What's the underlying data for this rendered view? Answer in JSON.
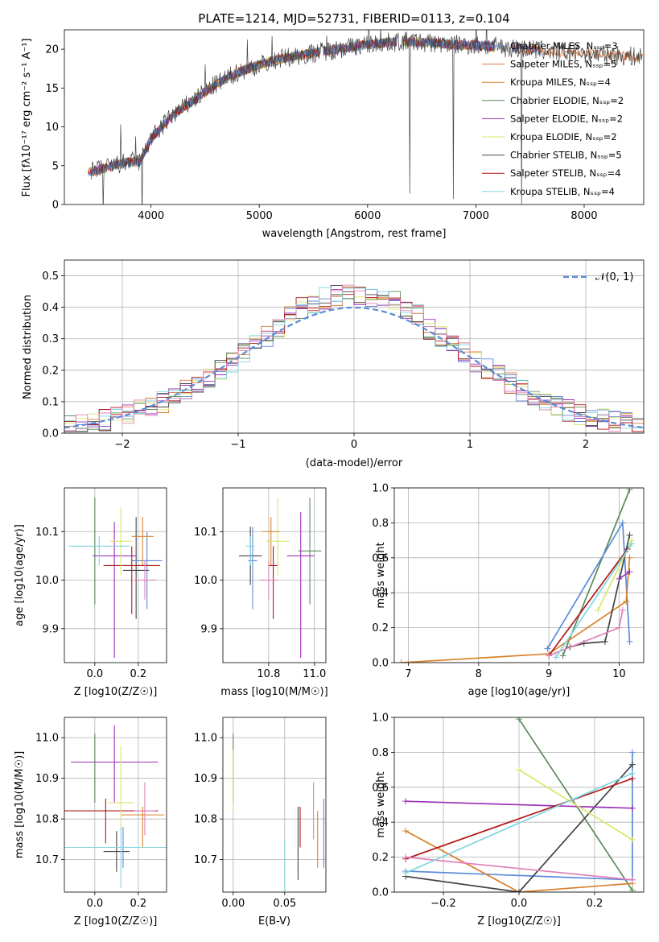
{
  "title": "PLATE=1214, MJD=52731, FIBERID=0113, z=0.104",
  "colors": {
    "Chabrier MILES": "#5b8bd9",
    "Salpeter MILES": "#e07a45",
    "Kroupa MILES": "#d9822b",
    "Chabrier ELODIE": "#5a8a5a",
    "Salpeter ELODIE": "#9b30b8",
    "Kroupa ELODIE": "#d8e86a",
    "Chabrier STELIB": "#444444",
    "Salpeter STELIB": "#b01818",
    "Kroupa STELIB": "#7fd6df",
    "Extra pink": "#e07fb8"
  },
  "chart_data": [
    {
      "type": "line",
      "title": "PLATE=1214, MJD=52731, FIBERID=0113, z=0.104",
      "xlabel": "wavelength [Angstrom, rest frame]",
      "ylabel": "Flux [fλ10⁻¹⁷ erg cm⁻² s⁻¹ A⁻¹]",
      "xlim": [
        3200,
        8550
      ],
      "ylim": [
        0,
        22.5
      ],
      "xticks": [
        4000,
        5000,
        6000,
        7000,
        8000
      ],
      "yticks": [
        0,
        5,
        10,
        15,
        20
      ],
      "legend": "top-right",
      "series": [
        {
          "name": "Chabrier MILES, N_SSP=3",
          "color": "#5b8bd9"
        },
        {
          "name": "Salpeter MILES, N_SSP=5",
          "color": "#e07a45"
        },
        {
          "name": "Kroupa MILES, N_SSP=4",
          "color": "#d9822b"
        },
        {
          "name": "Chabrier ELODIE, N_SSP=2",
          "color": "#5a8a5a"
        },
        {
          "name": "Salpeter ELODIE, N_SSP=2",
          "color": "#9b30b8"
        },
        {
          "name": "Kroupa ELODIE, N_SSP=2",
          "color": "#d8e86a"
        },
        {
          "name": "Chabrier STELIB, N_SSP=5",
          "color": "#444444"
        },
        {
          "name": "Salpeter STELIB, N_SSP=4",
          "color": "#b01818"
        },
        {
          "name": "Kroupa STELIB, N_SSP=4",
          "color": "#7fd6df"
        }
      ],
      "continuum": {
        "x": [
          3450,
          3600,
          3800,
          3900,
          4000,
          4100,
          4200,
          4400,
          4600,
          4800,
          5000,
          5200,
          5500,
          5800,
          6000,
          6300,
          6600,
          6800,
          7000,
          7200,
          7500,
          7800,
          8000,
          8200,
          8500
        ],
        "y": [
          4.2,
          4.8,
          5.5,
          5.5,
          8.5,
          10.0,
          11.5,
          13.5,
          15.5,
          17.0,
          18.0,
          18.8,
          19.5,
          20.2,
          20.6,
          21.0,
          20.8,
          20.6,
          20.5,
          20.3,
          20.0,
          19.6,
          19.5,
          19.3,
          19.0
        ]
      }
    },
    {
      "type": "line",
      "xlabel": "(data-model)/error",
      "ylabel": "Normed distribution",
      "xlim": [
        -2.5,
        2.5
      ],
      "ylim": [
        0,
        0.55
      ],
      "xticks": [
        -2,
        -1,
        0,
        1,
        2
      ],
      "yticks": [
        0.0,
        0.1,
        0.2,
        0.3,
        0.4,
        0.5
      ],
      "legend_label": "𝒩(0, 1)",
      "bins_x": [
        -2.5,
        -2.4,
        -2.3,
        -2.2,
        -2.1,
        -2.0,
        -1.9,
        -1.8,
        -1.7,
        -1.6,
        -1.5,
        -1.4,
        -1.3,
        -1.2,
        -1.1,
        -1.0,
        -0.9,
        -0.8,
        -0.7,
        -0.6,
        -0.5,
        -0.4,
        -0.3,
        -0.2,
        -0.1,
        0.0,
        0.1,
        0.2,
        0.3,
        0.4,
        0.5,
        0.6,
        0.7,
        0.8,
        0.9,
        1.0,
        1.1,
        1.2,
        1.3,
        1.4,
        1.5,
        1.6,
        1.7,
        1.8,
        1.9,
        2.0,
        2.1,
        2.2,
        2.3,
        2.4
      ]
    },
    {
      "type": "scatter",
      "xlabel": "Z [log10(Z/Z☉)]",
      "ylabel": "age  [log10(age/yr)]",
      "xlim": [
        -0.14,
        0.33
      ],
      "ylim": [
        9.83,
        10.19
      ],
      "xticks": [
        0.0,
        0.2
      ],
      "yticks": [
        9.9,
        10.0,
        10.1
      ],
      "points": [
        {
          "x": 0.0,
          "y": 10.06,
          "xerr": 0.0,
          "yerr": [
            0.11,
            0.11
          ],
          "color": "#5a8a5a"
        },
        {
          "x": 0.09,
          "y": 10.05,
          "xerr": 0.1,
          "yerr": [
            0.21,
            0.07
          ],
          "color": "#9b30b8"
        },
        {
          "x": 0.19,
          "y": 10.02,
          "xerr": 0.06,
          "yerr": [
            0.1,
            0.11
          ],
          "color": "#444444"
        },
        {
          "x": 0.24,
          "y": 10.04,
          "xerr": 0.07,
          "yerr": [
            0.1,
            0.06
          ],
          "color": "#5b8bd9"
        },
        {
          "x": 0.22,
          "y": 10.09,
          "xerr": 0.05,
          "yerr": [
            0.06,
            0.04
          ],
          "color": "#d9822b"
        },
        {
          "x": 0.17,
          "y": 10.03,
          "xerr": 0.13,
          "yerr": [
            0.1,
            0.04
          ],
          "color": "#b01818"
        },
        {
          "x": 0.23,
          "y": 10.0,
          "xerr": 0.05,
          "yerr": [
            0.04,
            0.04
          ],
          "color": "#e07fb8"
        },
        {
          "x": 0.12,
          "y": 10.08,
          "xerr": 0.05,
          "yerr": [
            0.07,
            0.07
          ],
          "color": "#d8e86a"
        },
        {
          "x": 0.02,
          "y": 10.07,
          "xerr": 0.14,
          "yerr": [
            0.04,
            0.02
          ],
          "color": "#7fd6df"
        }
      ]
    },
    {
      "type": "scatter",
      "xlabel": "mass [log10(M/M☉)]",
      "ylabel": "",
      "xlim": [
        10.6,
        11.05
      ],
      "ylim": [
        9.83,
        10.19
      ],
      "xticks": [
        10.8,
        11.0
      ],
      "yticks": [
        9.9,
        10.0,
        10.1
      ],
      "points": [
        {
          "x": 10.98,
          "y": 10.06,
          "xerr": 0.05,
          "yerr": [
            0.11,
            0.11
          ],
          "color": "#5a8a5a"
        },
        {
          "x": 10.94,
          "y": 10.05,
          "xerr": 0.06,
          "yerr": [
            0.21,
            0.09
          ],
          "color": "#9b30b8"
        },
        {
          "x": 10.72,
          "y": 10.05,
          "xerr": 0.05,
          "yerr": [
            0.06,
            0.06
          ],
          "color": "#444444"
        },
        {
          "x": 10.73,
          "y": 10.04,
          "xerr": 0.02,
          "yerr": [
            0.1,
            0.07
          ],
          "color": "#5b8bd9"
        },
        {
          "x": 10.81,
          "y": 10.1,
          "xerr": 0.04,
          "yerr": [
            0.07,
            0.03
          ],
          "color": "#d9822b"
        },
        {
          "x": 10.82,
          "y": 10.03,
          "xerr": 0.02,
          "yerr": [
            0.11,
            0.04
          ],
          "color": "#b01818"
        },
        {
          "x": 10.8,
          "y": 10.0,
          "xerr": 0.04,
          "yerr": [
            0.04,
            0.04
          ],
          "color": "#e07fb8"
        },
        {
          "x": 10.84,
          "y": 10.08,
          "xerr": 0.05,
          "yerr": [
            0.07,
            0.09
          ],
          "color": "#d8e86a"
        },
        {
          "x": 10.72,
          "y": 10.07,
          "xerr": 0.02,
          "yerr": [
            0.04,
            0.02
          ],
          "color": "#7fd6df"
        }
      ]
    },
    {
      "type": "line",
      "xlabel": "age  [log10(age/yr)]",
      "ylabel": "mass weight",
      "xlim": [
        6.8,
        10.35
      ],
      "ylim": [
        0,
        1.0
      ],
      "xticks": [
        7,
        8,
        9,
        10
      ],
      "yticks": [
        0.0,
        0.2,
        0.4,
        0.6,
        0.8,
        1.0
      ],
      "series": [
        {
          "color": "#5a8a5a",
          "x": [
            9.2,
            10.15
          ],
          "y": [
            0.04,
            0.99
          ]
        },
        {
          "color": "#5b8bd9",
          "x": [
            8.98,
            10.05,
            10.15
          ],
          "y": [
            0.08,
            0.8,
            0.12
          ]
        },
        {
          "color": "#d9822b",
          "x": [
            6.9,
            9.0,
            10.1,
            10.15
          ],
          "y": [
            0.0,
            0.05,
            0.35,
            0.6
          ]
        },
        {
          "color": "#444444",
          "x": [
            9.3,
            9.5,
            9.8,
            10.15
          ],
          "y": [
            0.09,
            0.11,
            0.12,
            0.73
          ]
        },
        {
          "color": "#9b30b8",
          "x": [
            10.0,
            10.15
          ],
          "y": [
            0.48,
            0.52
          ]
        },
        {
          "color": "#d8e86a",
          "x": [
            9.7,
            10.18
          ],
          "y": [
            0.3,
            0.7
          ]
        },
        {
          "color": "#b01818",
          "x": [
            9.0,
            10.12
          ],
          "y": [
            0.04,
            0.65
          ]
        },
        {
          "color": "#e07fb8",
          "x": [
            9.0,
            10.0,
            10.05
          ],
          "y": [
            0.04,
            0.2,
            0.3
          ]
        },
        {
          "color": "#7fd6df",
          "x": [
            9.1,
            10.18
          ],
          "y": [
            0.03,
            0.68
          ]
        }
      ]
    },
    {
      "type": "scatter",
      "xlabel": "Z [log10(Z/Z☉)]",
      "ylabel": "mass [log10(M/M☉)]",
      "xlim": [
        -0.14,
        0.33
      ],
      "ylim": [
        10.62,
        11.05
      ],
      "xticks": [
        0.0,
        0.2
      ],
      "yticks": [
        10.7,
        10.8,
        10.9,
        11.0
      ],
      "points": [
        {
          "x": 0.0,
          "y": 10.98,
          "xerr": 0.0,
          "yerr": [
            0.14,
            0.03
          ],
          "color": "#5a8a5a"
        },
        {
          "x": 0.09,
          "y": 10.94,
          "xerr": 0.2,
          "yerr": [
            0.1,
            0.09
          ],
          "color": "#9b30b8"
        },
        {
          "x": 0.1,
          "y": 10.72,
          "xerr": 0.06,
          "yerr": [
            0.05,
            0.05
          ],
          "color": "#444444"
        },
        {
          "x": 0.13,
          "y": 10.73,
          "xerr": 0.16,
          "yerr": [
            0.05,
            0.05
          ],
          "color": "#5b8bd9"
        },
        {
          "x": 0.22,
          "y": 10.81,
          "xerr": 0.1,
          "yerr": [
            0.08,
            0.02
          ],
          "color": "#d9822b"
        },
        {
          "x": 0.05,
          "y": 10.82,
          "xerr": 0.24,
          "yerr": [
            0.08,
            0.03
          ],
          "color": "#b01818"
        },
        {
          "x": 0.23,
          "y": 10.82,
          "xerr": 0.05,
          "yerr": [
            0.06,
            0.07
          ],
          "color": "#e07fb8"
        },
        {
          "x": 0.12,
          "y": 10.84,
          "xerr": 0.06,
          "yerr": [
            0.07,
            0.14
          ],
          "color": "#d8e86a"
        },
        {
          "x": 0.12,
          "y": 10.73,
          "xerr": 0.26,
          "yerr": [
            0.1,
            0.05
          ],
          "color": "#7fd6df"
        }
      ]
    },
    {
      "type": "scatter",
      "xlabel": "E(B-V)",
      "ylabel": "",
      "xlim": [
        -0.01,
        0.09
      ],
      "ylim": [
        10.62,
        11.05
      ],
      "xticks": [
        0.0,
        0.05
      ],
      "yticks": [
        10.7,
        10.8,
        10.9,
        11.0
      ],
      "points": [
        {
          "x": 0.0,
          "y": 11.09,
          "yerr": [
            0.04,
            0.04
          ],
          "color": "#9b30b8"
        },
        {
          "x": 0.0,
          "y": 10.98,
          "yerr": [
            0.14,
            0.03
          ],
          "color": "#5a8a5a"
        },
        {
          "x": 0.0,
          "y": 10.9,
          "yerr": [
            0.08,
            0.07
          ],
          "color": "#d8e86a"
        },
        {
          "x": 0.05,
          "y": 10.67,
          "yerr": [
            0.05,
            0.08
          ],
          "color": "#7fd6df"
        },
        {
          "x": 0.063,
          "y": 10.73,
          "yerr": [
            0.08,
            0.1
          ],
          "color": "#444444"
        },
        {
          "x": 0.065,
          "y": 10.81,
          "yerr": [
            0.08,
            0.02
          ],
          "color": "#b01818"
        },
        {
          "x": 0.078,
          "y": 10.82,
          "yerr": [
            0.07,
            0.07
          ],
          "color": "#e07fb8"
        },
        {
          "x": 0.082,
          "y": 10.76,
          "yerr": [
            0.08,
            0.06
          ],
          "color": "#d9822b"
        },
        {
          "x": 0.088,
          "y": 10.76,
          "yerr": [
            0.08,
            0.09
          ],
          "color": "#5b8bd9"
        }
      ]
    },
    {
      "type": "line",
      "xlabel": "Z [log10(Z/Z☉)]",
      "ylabel": "mass weight",
      "xlim": [
        -0.33,
        0.33
      ],
      "ylim": [
        0,
        1.0
      ],
      "xticks": [
        -0.2,
        0.0,
        0.2
      ],
      "yticks": [
        0.0,
        0.2,
        0.4,
        0.6,
        0.8,
        1.0
      ],
      "series": [
        {
          "color": "#5a8a5a",
          "x": [
            0.0,
            0.3
          ],
          "y": [
            0.99,
            0.01
          ]
        },
        {
          "color": "#5b8bd9",
          "x": [
            -0.3,
            0.3,
            0.3
          ],
          "y": [
            0.12,
            0.07,
            0.8
          ]
        },
        {
          "color": "#d9822b",
          "x": [
            -0.3,
            0.0,
            0.3
          ],
          "y": [
            0.35,
            0.0,
            0.05
          ]
        },
        {
          "color": "#444444",
          "x": [
            -0.3,
            0.0,
            0.3
          ],
          "y": [
            0.09,
            0.0,
            0.73
          ]
        },
        {
          "color": "#9b30b8",
          "x": [
            -0.3,
            0.3
          ],
          "y": [
            0.52,
            0.48
          ]
        },
        {
          "color": "#d8e86a",
          "x": [
            0.0,
            0.3
          ],
          "y": [
            0.7,
            0.3
          ]
        },
        {
          "color": "#b01818",
          "x": [
            -0.3,
            0.3
          ],
          "y": [
            0.19,
            0.65
          ]
        },
        {
          "color": "#e07fb8",
          "x": [
            -0.3,
            0.3
          ],
          "y": [
            0.2,
            0.07
          ]
        },
        {
          "color": "#7fd6df",
          "x": [
            -0.3,
            0.3
          ],
          "y": [
            0.11,
            0.68
          ]
        }
      ]
    }
  ]
}
